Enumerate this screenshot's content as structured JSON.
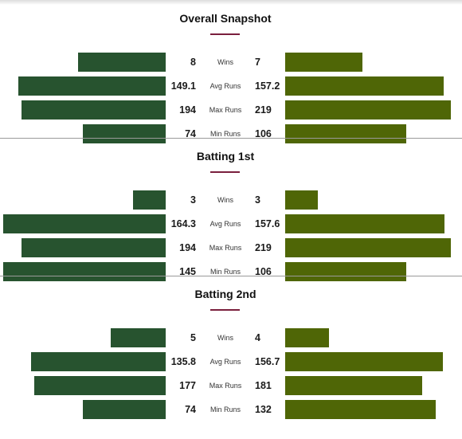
{
  "colors": {
    "team_left": "#27532f",
    "team_right": "#4f6606",
    "accent": "#7a1f3d"
  },
  "chart_data": [
    {
      "type": "bar",
      "title": "Overall Snapshot",
      "categories": [
        "Wins",
        "Avg Runs",
        "Max Runs",
        "Min Runs"
      ],
      "series": [
        {
          "values": [
            "8",
            "149.1",
            "194",
            "74"
          ]
        },
        {
          "values": [
            "7",
            "157.2",
            "219",
            "106"
          ]
        }
      ]
    },
    {
      "type": "bar",
      "title": "Batting 1st",
      "categories": [
        "Wins",
        "Avg Runs",
        "Max Runs",
        "Min Runs"
      ],
      "series": [
        {
          "values": [
            "3",
            "164.3",
            "194",
            "145"
          ]
        },
        {
          "values": [
            "3",
            "157.6",
            "219",
            "106"
          ]
        }
      ]
    },
    {
      "type": "bar",
      "title": "Batting 2nd",
      "categories": [
        "Wins",
        "Avg Runs",
        "Max Runs",
        "Min Runs"
      ],
      "series": [
        {
          "values": [
            "5",
            "135.8",
            "177",
            "74"
          ]
        },
        {
          "values": [
            "4",
            "156.7",
            "181",
            "132"
          ]
        }
      ]
    }
  ]
}
